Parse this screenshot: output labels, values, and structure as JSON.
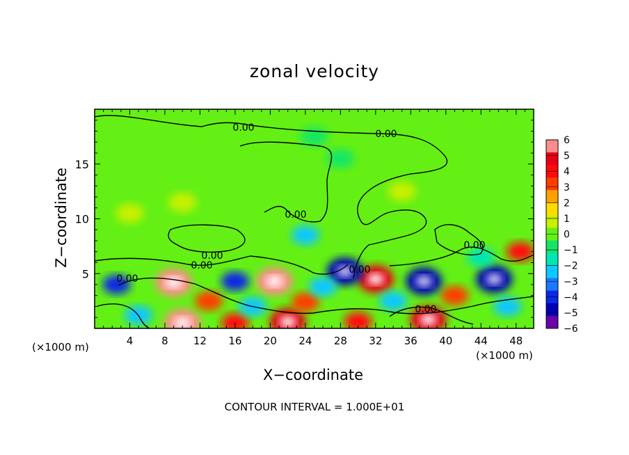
{
  "chart_data": {
    "type": "heatmap",
    "title": "zonal velocity",
    "xlabel": "X−coordinate",
    "ylabel": "Z−coordinate",
    "x_unit_label": "(×1000 m)",
    "x_unit_label_right": "(×1000 m)",
    "footer": "CONTOUR INTERVAL = 1.000E+01",
    "xlim": [
      0,
      50
    ],
    "ylim": [
      0,
      20
    ],
    "x_ticks": [
      4,
      8,
      12,
      16,
      20,
      24,
      28,
      32,
      36,
      40,
      44,
      48
    ],
    "y_ticks": [
      5,
      10,
      15
    ],
    "colorbar": {
      "min": -6,
      "max": 6,
      "tick_labels": [
        "6",
        "5",
        "4",
        "3",
        "2",
        "1",
        "0",
        "−1",
        "−2",
        "−3",
        "−4",
        "−5",
        "−6"
      ],
      "colors_low_to_high": [
        "#6a00a8",
        "#0000b4",
        "#0a28e6",
        "#1a78ff",
        "#10c8ff",
        "#00e6b4",
        "#14e664",
        "#64f014",
        "#c8f000",
        "#ffdc00",
        "#ffa000",
        "#ff3c00",
        "#ff0a0a",
        "#e60014",
        "#ff8c8c"
      ]
    },
    "contour_labels": [
      "0.00",
      "0.00",
      "0.00",
      "0.00",
      "0.00",
      "0.00",
      "0.00",
      "0.00",
      "0.00"
    ],
    "field_description": "u velocity in x-z cross section; mostly near zero (green) above z=6 km, strong alternating positive/negative cells below z=6 km",
    "cells": [
      {
        "x": 9,
        "z": 4.2,
        "v": 6
      },
      {
        "x": 20.5,
        "z": 4.3,
        "v": 6
      },
      {
        "x": 10,
        "z": 0.5,
        "v": 6
      },
      {
        "x": 22,
        "z": 0.6,
        "v": 5
      },
      {
        "x": 32,
        "z": 4.5,
        "v": 5
      },
      {
        "x": 38,
        "z": 0.8,
        "v": 5
      },
      {
        "x": 48.5,
        "z": 7,
        "v": 4
      },
      {
        "x": 16,
        "z": 0.5,
        "v": 4
      },
      {
        "x": 30,
        "z": 0.6,
        "v": 4
      },
      {
        "x": 24,
        "z": 2.4,
        "v": 3
      },
      {
        "x": 41,
        "z": 3,
        "v": 3
      },
      {
        "x": 13,
        "z": 2.5,
        "v": 3
      },
      {
        "x": 28.5,
        "z": 5.2,
        "v": -5
      },
      {
        "x": 37.5,
        "z": 4.3,
        "v": -5
      },
      {
        "x": 45.5,
        "z": 4.5,
        "v": -5
      },
      {
        "x": 2.5,
        "z": 4,
        "v": -4
      },
      {
        "x": 16,
        "z": 4.3,
        "v": -4
      },
      {
        "x": 34,
        "z": 2.5,
        "v": -3
      },
      {
        "x": 24,
        "z": 8.5,
        "v": -2.5
      },
      {
        "x": 5,
        "z": 1.2,
        "v": -3
      },
      {
        "x": 44,
        "z": 6.5,
        "v": -2
      },
      {
        "x": 26,
        "z": 3.8,
        "v": -3
      },
      {
        "x": 18,
        "z": 2.0,
        "v": -3
      },
      {
        "x": 47,
        "z": 2.0,
        "v": -3
      },
      {
        "x": 4,
        "z": 10.5,
        "v": 0.8
      },
      {
        "x": 10,
        "z": 11.5,
        "v": 0.7
      },
      {
        "x": 35,
        "z": 12.5,
        "v": 0.6
      },
      {
        "x": 28,
        "z": 15.5,
        "v": -0.9
      },
      {
        "x": 25,
        "z": 17.5,
        "v": -0.7
      }
    ]
  }
}
